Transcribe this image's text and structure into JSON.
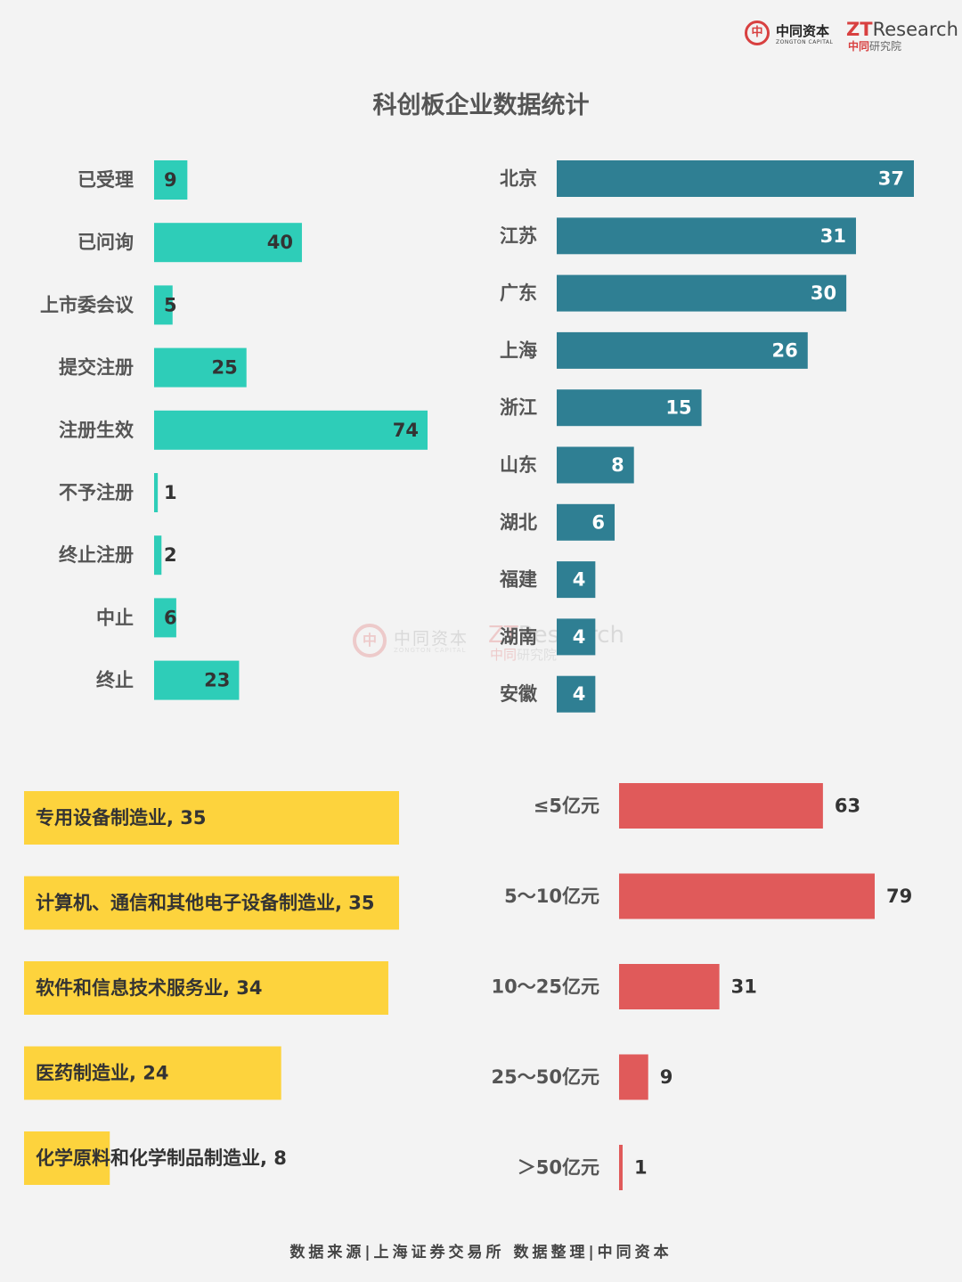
{
  "title": "科创板企业数据统计",
  "footer": "数据来源|上海证券交易所  数据整理|中同资本",
  "logo": {
    "seal": "中",
    "cn": "中同资本",
    "en": "ZONGTON CAPITAL",
    "zt_red": "ZT",
    "zt_rest": "Research",
    "inst_red": "中同",
    "inst_rest": "研究院"
  },
  "colors": {
    "status": "#2ecdb8",
    "province": "#2f7f93",
    "industry": "#fdd33d",
    "size": "#e05a5a",
    "label": "#555555",
    "value_text": "#333333"
  },
  "chart_data": [
    {
      "type": "bar",
      "orientation": "horizontal",
      "categories": [
        "已受理",
        "已问询",
        "上市委会议",
        "提交注册",
        "注册生效",
        "不予注册",
        "终止注册",
        "中止",
        "终止"
      ],
      "values": [
        9,
        40,
        5,
        25,
        74,
        1,
        2,
        6,
        23
      ]
    },
    {
      "type": "bar",
      "orientation": "horizontal",
      "categories": [
        "北京",
        "江苏",
        "广东",
        "上海",
        "浙江",
        "山东",
        "湖北",
        "福建",
        "湖南",
        "安徽"
      ],
      "values": [
        37,
        31,
        30,
        26,
        15,
        8,
        6,
        4,
        4,
        4
      ]
    },
    {
      "type": "bar",
      "orientation": "horizontal",
      "categories": [
        "专用设备制造业",
        "计算机、通信和其他电子设备制造业",
        "软件和信息技术服务业",
        "医药制造业",
        "化学原料和化学制品制造业"
      ],
      "values": [
        35,
        35,
        34,
        24,
        8
      ]
    },
    {
      "type": "bar",
      "orientation": "horizontal",
      "categories": [
        "≤5亿元",
        "5～10亿元",
        "10～25亿元",
        "25～50亿元",
        "＞50亿元"
      ],
      "values": [
        63,
        79,
        31,
        9,
        1
      ]
    }
  ]
}
